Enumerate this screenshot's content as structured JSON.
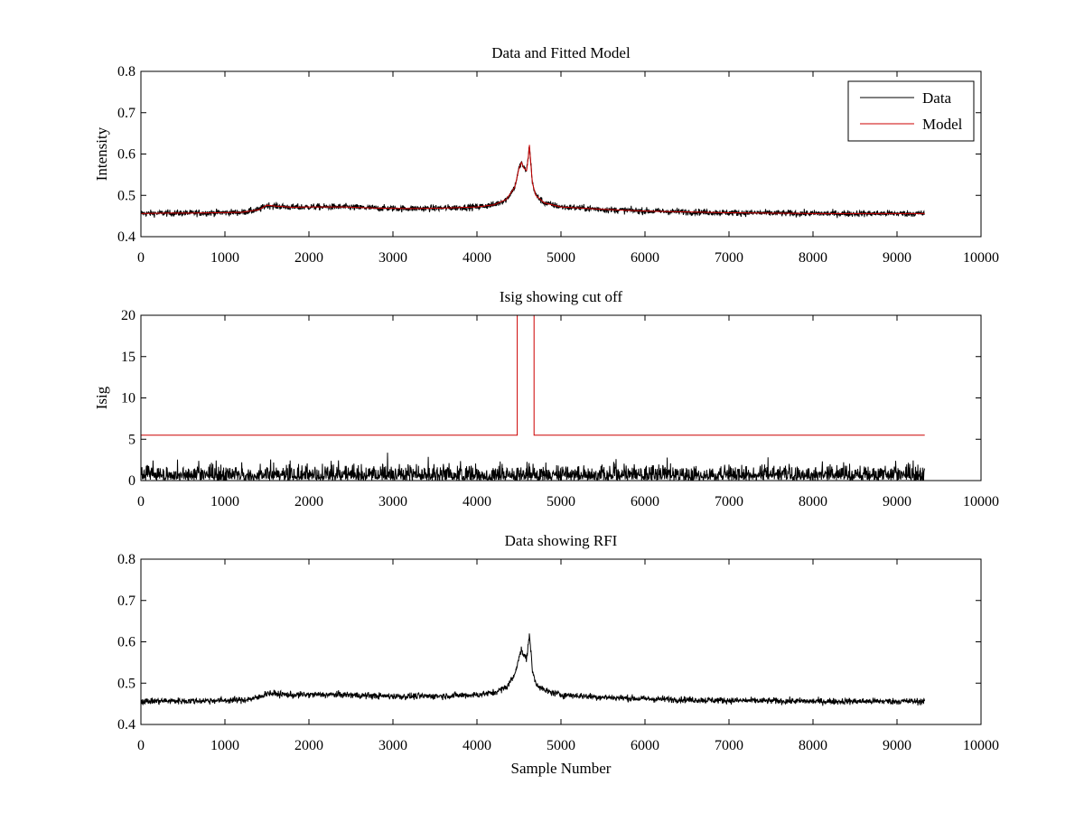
{
  "chart_data": [
    {
      "type": "line",
      "title": "Data and Fitted Model",
      "xlabel": "",
      "ylabel": "Intensity",
      "xlim": [
        0,
        10000
      ],
      "ylim": [
        0.4,
        0.8
      ],
      "xticks": [
        0,
        1000,
        2000,
        3000,
        4000,
        5000,
        6000,
        7000,
        8000,
        9000,
        10000
      ],
      "yticks": [
        0.4,
        0.5,
        0.6,
        0.7,
        0.8
      ],
      "grid": false,
      "legend": {
        "position": "top-right"
      },
      "series": [
        {
          "name": "Data",
          "color": "#000000",
          "noise": 0.004,
          "x": [
            0,
            300,
            600,
            900,
            1200,
            1400,
            1500,
            1600,
            1800,
            2000,
            2400,
            2800,
            3200,
            3600,
            4000,
            4200,
            4350,
            4450,
            4500,
            4530,
            4560,
            4590,
            4610,
            4625,
            4640,
            4660,
            4700,
            4800,
            5000,
            5500,
            6000,
            6500,
            7000,
            8000,
            9000,
            9330
          ],
          "y": [
            0.456,
            0.457,
            0.457,
            0.458,
            0.459,
            0.465,
            0.476,
            0.474,
            0.471,
            0.472,
            0.472,
            0.469,
            0.468,
            0.469,
            0.472,
            0.477,
            0.49,
            0.52,
            0.565,
            0.58,
            0.565,
            0.56,
            0.59,
            0.622,
            0.58,
            0.53,
            0.5,
            0.482,
            0.472,
            0.466,
            0.462,
            0.46,
            0.458,
            0.456,
            0.456,
            0.456
          ]
        },
        {
          "name": "Model",
          "color": "#cc0000",
          "noise": 0,
          "x": [
            0,
            300,
            600,
            900,
            1200,
            1400,
            1500,
            1600,
            1800,
            2000,
            2400,
            2800,
            3200,
            3600,
            4000,
            4200,
            4350,
            4450,
            4500,
            4530,
            4560,
            4590,
            4610,
            4625,
            4640,
            4660,
            4700,
            4800,
            5000,
            5500,
            6000,
            6500,
            7000,
            8000,
            9000,
            9330
          ],
          "y": [
            0.456,
            0.457,
            0.457,
            0.458,
            0.459,
            0.465,
            0.476,
            0.474,
            0.471,
            0.472,
            0.472,
            0.469,
            0.468,
            0.469,
            0.472,
            0.477,
            0.49,
            0.52,
            0.565,
            0.58,
            0.565,
            0.56,
            0.59,
            0.622,
            0.58,
            0.53,
            0.5,
            0.482,
            0.472,
            0.466,
            0.462,
            0.46,
            0.458,
            0.456,
            0.456,
            0.456
          ]
        }
      ]
    },
    {
      "type": "line",
      "title": "Isig showing cut off",
      "xlabel": "",
      "ylabel": "Isig",
      "xlim": [
        0,
        10000
      ],
      "ylim": [
        0,
        20
      ],
      "xticks": [
        0,
        1000,
        2000,
        3000,
        4000,
        5000,
        6000,
        7000,
        8000,
        9000,
        10000
      ],
      "yticks": [
        0,
        5,
        10,
        15,
        20
      ],
      "grid": false,
      "series": [
        {
          "color": "#000000",
          "style": "abs-noise",
          "x": [
            0,
            9330
          ],
          "y": [
            0.8,
            0.8
          ],
          "noise": 0.9
        },
        {
          "color": "#cc0000",
          "x": [
            0,
            4480,
            4480,
            4680,
            4680,
            9330
          ],
          "y": [
            5.5,
            5.5,
            20,
            20,
            5.5,
            5.5
          ],
          "noise": 0
        }
      ]
    },
    {
      "type": "line",
      "title": "Data showing RFI",
      "xlabel": "Sample Number",
      "ylabel": "",
      "xlim": [
        0,
        10000
      ],
      "ylim": [
        0.4,
        0.8
      ],
      "xticks": [
        0,
        1000,
        2000,
        3000,
        4000,
        5000,
        6000,
        7000,
        8000,
        9000,
        10000
      ],
      "yticks": [
        0.4,
        0.5,
        0.6,
        0.7,
        0.8
      ],
      "grid": false,
      "series": [
        {
          "color": "#000000",
          "noise": 0.004,
          "x": [
            0,
            300,
            600,
            900,
            1200,
            1400,
            1500,
            1600,
            1800,
            2000,
            2400,
            2800,
            3200,
            3600,
            4000,
            4200,
            4350,
            4450,
            4500,
            4530,
            4560,
            4590,
            4610,
            4625,
            4640,
            4660,
            4700,
            4800,
            5000,
            5500,
            6000,
            6500,
            7000,
            8000,
            9000,
            9330
          ],
          "y": [
            0.456,
            0.457,
            0.457,
            0.458,
            0.459,
            0.465,
            0.476,
            0.474,
            0.471,
            0.472,
            0.472,
            0.469,
            0.468,
            0.469,
            0.472,
            0.477,
            0.49,
            0.52,
            0.565,
            0.58,
            0.565,
            0.56,
            0.59,
            0.622,
            0.58,
            0.53,
            0.5,
            0.482,
            0.472,
            0.466,
            0.462,
            0.46,
            0.458,
            0.456,
            0.456,
            0.456
          ]
        }
      ]
    }
  ]
}
